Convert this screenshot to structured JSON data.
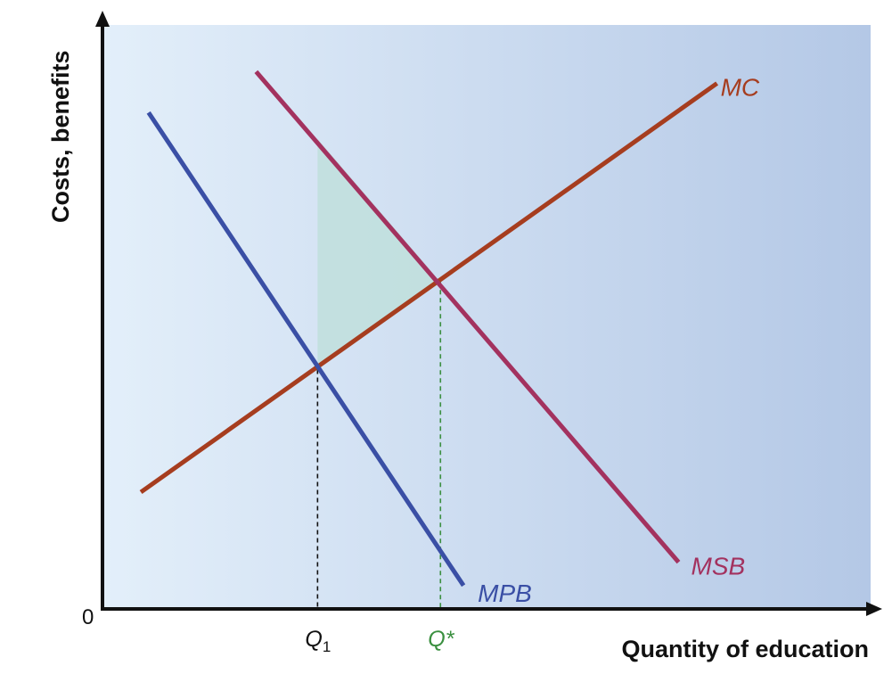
{
  "chart_data": {
    "type": "line",
    "xlabel": "Quantity of education",
    "ylabel": "Costs, benefits",
    "origin_label": "0",
    "xlim": [
      0,
      100
    ],
    "ylim": [
      0,
      100
    ],
    "grid": false,
    "colors": {
      "background_left": "#e3effa",
      "background_right": "#b4c8e6",
      "axis": "#111111",
      "shaded_area": "#bfdfdc"
    },
    "series": [
      {
        "name": "MC",
        "color": "#a63d1f",
        "points": [
          [
            5,
            20
          ],
          [
            80,
            90
          ]
        ]
      },
      {
        "name": "MSB",
        "color": "#a3325f",
        "points": [
          [
            20,
            92
          ],
          [
            75,
            8
          ]
        ]
      },
      {
        "name": "MPB",
        "color": "#3a4fa5",
        "points": [
          [
            6,
            85
          ],
          [
            47,
            4
          ]
        ]
      }
    ],
    "ticks": [
      {
        "label": "Q",
        "subscript": "1",
        "x": 28,
        "guide_to_y": 41,
        "color": "#111111"
      },
      {
        "label": "Q*",
        "subscript": "",
        "x": 44,
        "guide_to_y": 56,
        "color": "#3a8f3f"
      }
    ],
    "shaded_region": {
      "description_points": [
        [
          28,
          80.5
        ],
        [
          44,
          56
        ],
        [
          28,
          41
        ]
      ]
    }
  }
}
